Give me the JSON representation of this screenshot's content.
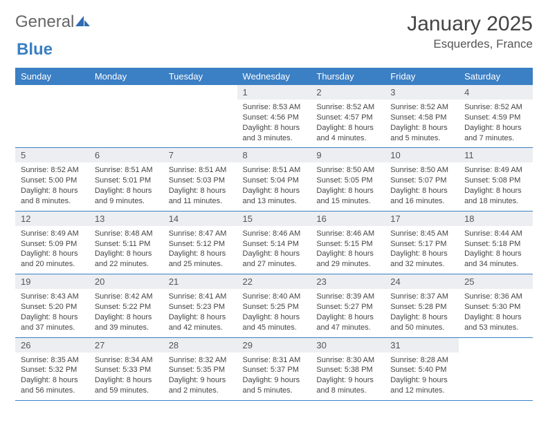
{
  "logo": {
    "text1": "General",
    "text2": "Blue"
  },
  "title": {
    "month": "January 2025",
    "location": "Esquerdes, France"
  },
  "colors": {
    "header_bg": "#3b7fc4",
    "header_text": "#ffffff",
    "daynum_bg": "#eceef1",
    "body_text": "#444444",
    "row_border": "#3b7fc4"
  },
  "weekdays": [
    "Sunday",
    "Monday",
    "Tuesday",
    "Wednesday",
    "Thursday",
    "Friday",
    "Saturday"
  ],
  "weeks": [
    [
      null,
      null,
      null,
      {
        "n": "1",
        "sr": "8:53 AM",
        "ss": "4:56 PM",
        "dl": "8 hours and 3 minutes."
      },
      {
        "n": "2",
        "sr": "8:52 AM",
        "ss": "4:57 PM",
        "dl": "8 hours and 4 minutes."
      },
      {
        "n": "3",
        "sr": "8:52 AM",
        "ss": "4:58 PM",
        "dl": "8 hours and 5 minutes."
      },
      {
        "n": "4",
        "sr": "8:52 AM",
        "ss": "4:59 PM",
        "dl": "8 hours and 7 minutes."
      }
    ],
    [
      {
        "n": "5",
        "sr": "8:52 AM",
        "ss": "5:00 PM",
        "dl": "8 hours and 8 minutes."
      },
      {
        "n": "6",
        "sr": "8:51 AM",
        "ss": "5:01 PM",
        "dl": "8 hours and 9 minutes."
      },
      {
        "n": "7",
        "sr": "8:51 AM",
        "ss": "5:03 PM",
        "dl": "8 hours and 11 minutes."
      },
      {
        "n": "8",
        "sr": "8:51 AM",
        "ss": "5:04 PM",
        "dl": "8 hours and 13 minutes."
      },
      {
        "n": "9",
        "sr": "8:50 AM",
        "ss": "5:05 PM",
        "dl": "8 hours and 15 minutes."
      },
      {
        "n": "10",
        "sr": "8:50 AM",
        "ss": "5:07 PM",
        "dl": "8 hours and 16 minutes."
      },
      {
        "n": "11",
        "sr": "8:49 AM",
        "ss": "5:08 PM",
        "dl": "8 hours and 18 minutes."
      }
    ],
    [
      {
        "n": "12",
        "sr": "8:49 AM",
        "ss": "5:09 PM",
        "dl": "8 hours and 20 minutes."
      },
      {
        "n": "13",
        "sr": "8:48 AM",
        "ss": "5:11 PM",
        "dl": "8 hours and 22 minutes."
      },
      {
        "n": "14",
        "sr": "8:47 AM",
        "ss": "5:12 PM",
        "dl": "8 hours and 25 minutes."
      },
      {
        "n": "15",
        "sr": "8:46 AM",
        "ss": "5:14 PM",
        "dl": "8 hours and 27 minutes."
      },
      {
        "n": "16",
        "sr": "8:46 AM",
        "ss": "5:15 PM",
        "dl": "8 hours and 29 minutes."
      },
      {
        "n": "17",
        "sr": "8:45 AM",
        "ss": "5:17 PM",
        "dl": "8 hours and 32 minutes."
      },
      {
        "n": "18",
        "sr": "8:44 AM",
        "ss": "5:18 PM",
        "dl": "8 hours and 34 minutes."
      }
    ],
    [
      {
        "n": "19",
        "sr": "8:43 AM",
        "ss": "5:20 PM",
        "dl": "8 hours and 37 minutes."
      },
      {
        "n": "20",
        "sr": "8:42 AM",
        "ss": "5:22 PM",
        "dl": "8 hours and 39 minutes."
      },
      {
        "n": "21",
        "sr": "8:41 AM",
        "ss": "5:23 PM",
        "dl": "8 hours and 42 minutes."
      },
      {
        "n": "22",
        "sr": "8:40 AM",
        "ss": "5:25 PM",
        "dl": "8 hours and 45 minutes."
      },
      {
        "n": "23",
        "sr": "8:39 AM",
        "ss": "5:27 PM",
        "dl": "8 hours and 47 minutes."
      },
      {
        "n": "24",
        "sr": "8:37 AM",
        "ss": "5:28 PM",
        "dl": "8 hours and 50 minutes."
      },
      {
        "n": "25",
        "sr": "8:36 AM",
        "ss": "5:30 PM",
        "dl": "8 hours and 53 minutes."
      }
    ],
    [
      {
        "n": "26",
        "sr": "8:35 AM",
        "ss": "5:32 PM",
        "dl": "8 hours and 56 minutes."
      },
      {
        "n": "27",
        "sr": "8:34 AM",
        "ss": "5:33 PM",
        "dl": "8 hours and 59 minutes."
      },
      {
        "n": "28",
        "sr": "8:32 AM",
        "ss": "5:35 PM",
        "dl": "9 hours and 2 minutes."
      },
      {
        "n": "29",
        "sr": "8:31 AM",
        "ss": "5:37 PM",
        "dl": "9 hours and 5 minutes."
      },
      {
        "n": "30",
        "sr": "8:30 AM",
        "ss": "5:38 PM",
        "dl": "9 hours and 8 minutes."
      },
      {
        "n": "31",
        "sr": "8:28 AM",
        "ss": "5:40 PM",
        "dl": "9 hours and 12 minutes."
      },
      null
    ]
  ],
  "labels": {
    "sunrise": "Sunrise: ",
    "sunset": "Sunset: ",
    "daylight": "Daylight: "
  }
}
